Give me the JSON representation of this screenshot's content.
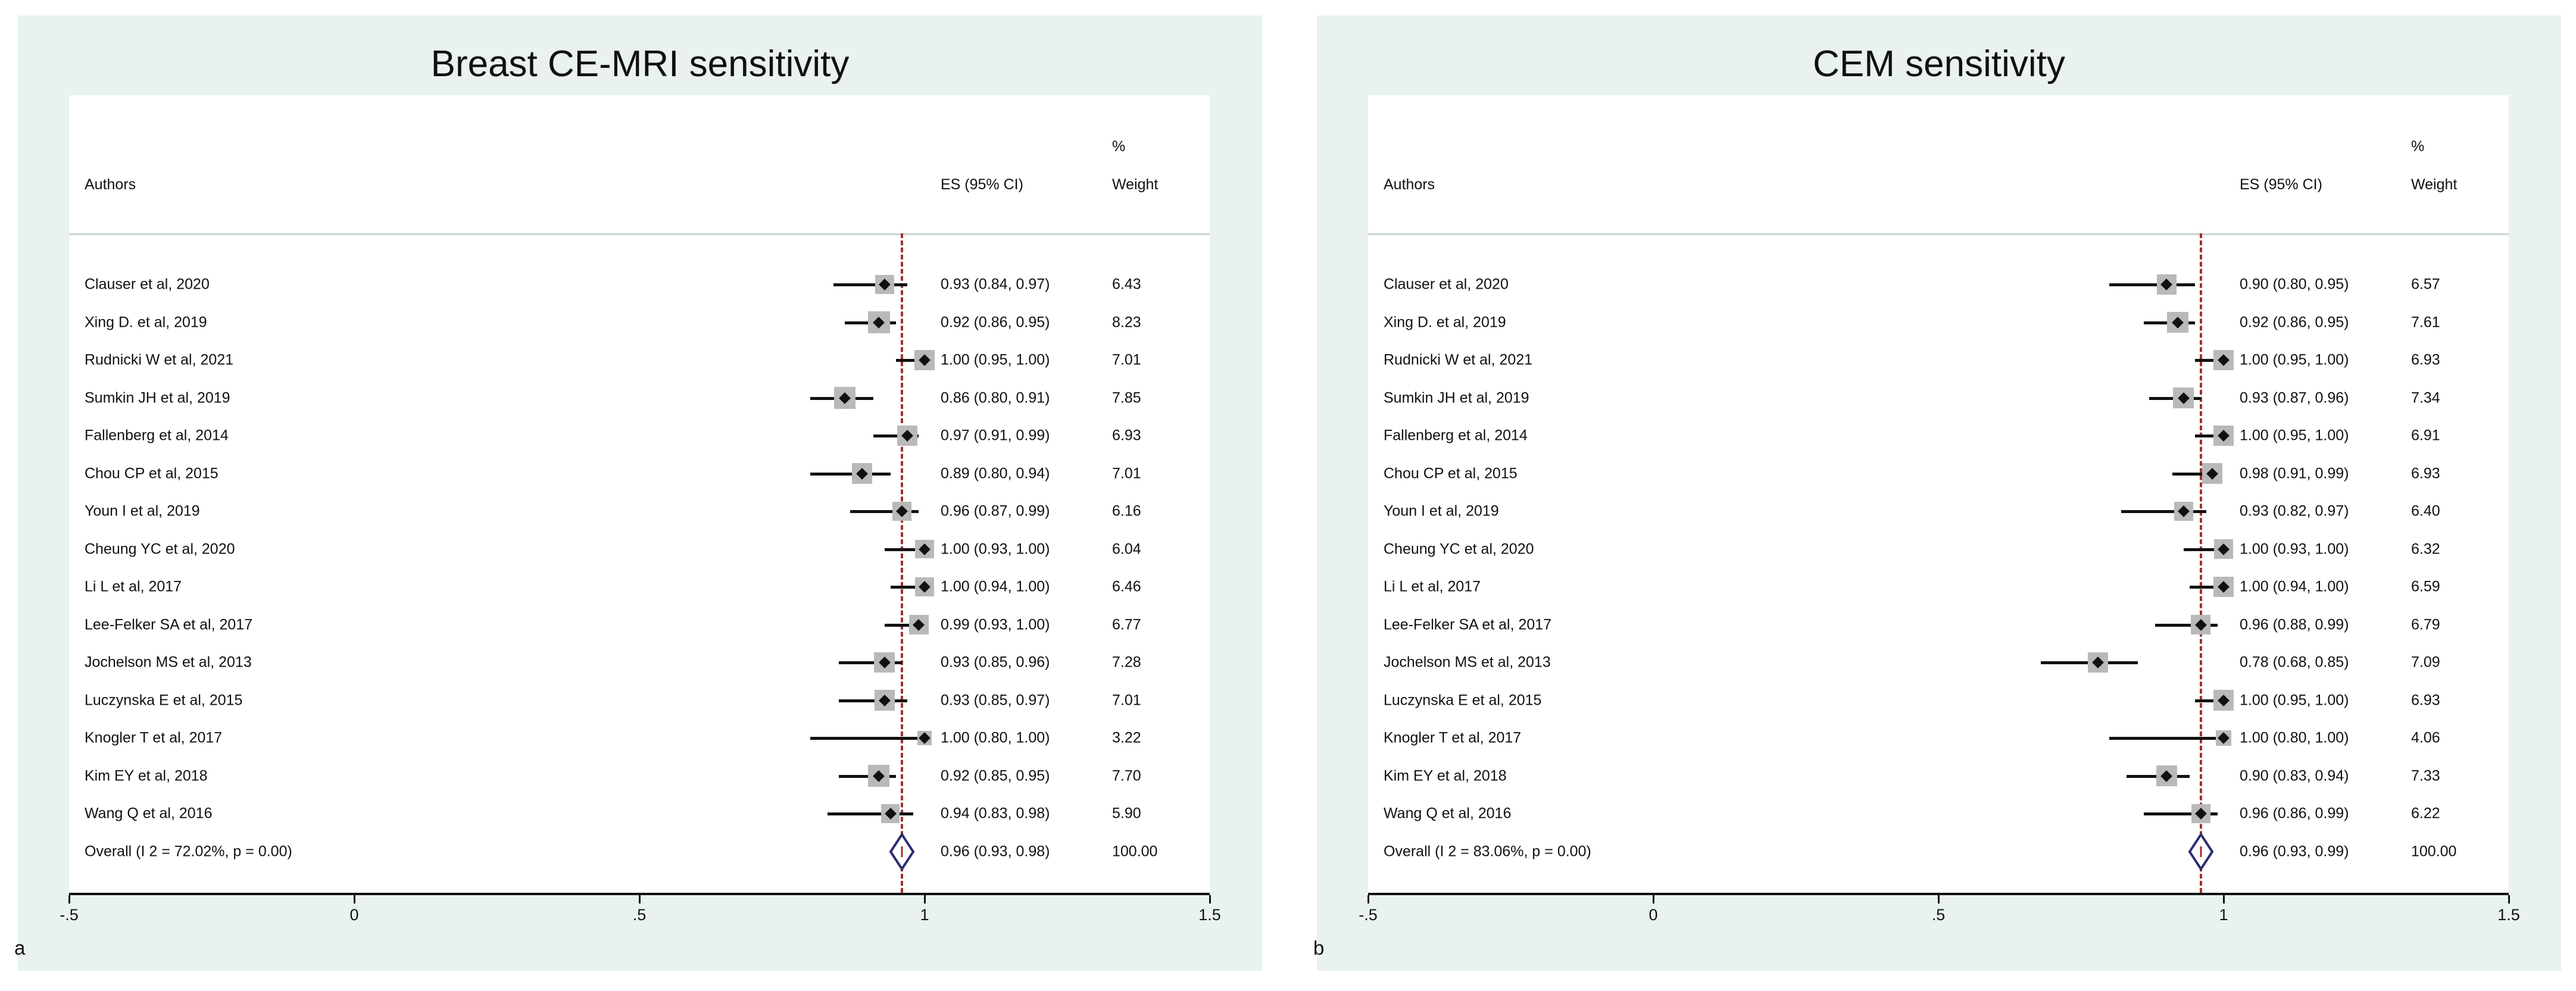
{
  "chart_data": [
    {
      "panel_label": "a",
      "type": "forest",
      "title": "Breast CE-MRI sensitivity",
      "col_headers": {
        "authors": "Authors",
        "es": "ES (95% CI)",
        "pct": "%",
        "weight": "Weight"
      },
      "xlim": [
        -0.5,
        1.5
      ],
      "ticks": [
        "-.5",
        "0",
        ".5",
        "1",
        "1.5"
      ],
      "tick_values": [
        -0.5,
        0,
        0.5,
        1,
        1.5
      ],
      "overall_es": 0.96,
      "studies": [
        {
          "name": "Clauser et al, 2020",
          "es": 0.93,
          "lo": 0.84,
          "hi": 0.97,
          "label": "0.93 (0.84, 0.97)",
          "weight": "6.43"
        },
        {
          "name": "Xing D. et al, 2019",
          "es": 0.92,
          "lo": 0.86,
          "hi": 0.95,
          "label": "0.92 (0.86, 0.95)",
          "weight": "8.23"
        },
        {
          "name": "Rudnicki W et al, 2021",
          "es": 1.0,
          "lo": 0.95,
          "hi": 1.0,
          "label": "1.00 (0.95, 1.00)",
          "weight": "7.01"
        },
        {
          "name": "Sumkin JH et al, 2019",
          "es": 0.86,
          "lo": 0.8,
          "hi": 0.91,
          "label": "0.86 (0.80, 0.91)",
          "weight": "7.85"
        },
        {
          "name": "Fallenberg et al, 2014",
          "es": 0.97,
          "lo": 0.91,
          "hi": 0.99,
          "label": "0.97 (0.91, 0.99)",
          "weight": "6.93"
        },
        {
          "name": "Chou CP et al, 2015",
          "es": 0.89,
          "lo": 0.8,
          "hi": 0.94,
          "label": "0.89 (0.80, 0.94)",
          "weight": "7.01"
        },
        {
          "name": "Youn I et al, 2019",
          "es": 0.96,
          "lo": 0.87,
          "hi": 0.99,
          "label": "0.96 (0.87, 0.99)",
          "weight": "6.16"
        },
        {
          "name": "Cheung YC et al, 2020",
          "es": 1.0,
          "lo": 0.93,
          "hi": 1.0,
          "label": "1.00 (0.93, 1.00)",
          "weight": "6.04"
        },
        {
          "name": "Li L et al, 2017",
          "es": 1.0,
          "lo": 0.94,
          "hi": 1.0,
          "label": "1.00 (0.94, 1.00)",
          "weight": "6.46"
        },
        {
          "name": "Lee-Felker SA et al, 2017",
          "es": 0.99,
          "lo": 0.93,
          "hi": 1.0,
          "label": "0.99 (0.93, 1.00)",
          "weight": "6.77"
        },
        {
          "name": "Jochelson MS et al, 2013",
          "es": 0.93,
          "lo": 0.85,
          "hi": 0.96,
          "label": "0.93 (0.85, 0.96)",
          "weight": "7.28"
        },
        {
          "name": "Luczynska E et al, 2015",
          "es": 0.93,
          "lo": 0.85,
          "hi": 0.97,
          "label": "0.93 (0.85, 0.97)",
          "weight": "7.01"
        },
        {
          "name": "Knogler T et al, 2017",
          "es": 1.0,
          "lo": 0.8,
          "hi": 1.0,
          "label": "1.00 (0.80, 1.00)",
          "weight": "3.22"
        },
        {
          "name": "Kim EY et al, 2018",
          "es": 0.92,
          "lo": 0.85,
          "hi": 0.95,
          "label": "0.92 (0.85, 0.95)",
          "weight": "7.70"
        },
        {
          "name": "Wang Q et al, 2016",
          "es": 0.94,
          "lo": 0.83,
          "hi": 0.98,
          "label": "0.94 (0.83, 0.98)",
          "weight": "5.90"
        }
      ],
      "overall": {
        "name": "Overall  (I 2 = 72.02%, p = 0.00)",
        "es": 0.96,
        "lo": 0.93,
        "hi": 0.98,
        "label": "0.96 (0.93, 0.98)",
        "weight": "100.00"
      }
    },
    {
      "panel_label": "b",
      "type": "forest",
      "title": "CEM sensitivity",
      "col_headers": {
        "authors": "Authors",
        "es": "ES (95% CI)",
        "pct": "%",
        "weight": "Weight"
      },
      "xlim": [
        -0.5,
        1.5
      ],
      "ticks": [
        "-.5",
        "0",
        ".5",
        "1",
        "1.5"
      ],
      "tick_values": [
        -0.5,
        0,
        0.5,
        1,
        1.5
      ],
      "overall_es": 0.96,
      "studies": [
        {
          "name": "Clauser et al, 2020",
          "es": 0.9,
          "lo": 0.8,
          "hi": 0.95,
          "label": "0.90 (0.80, 0.95)",
          "weight": "6.57"
        },
        {
          "name": "Xing D. et al, 2019",
          "es": 0.92,
          "lo": 0.86,
          "hi": 0.95,
          "label": "0.92 (0.86, 0.95)",
          "weight": "7.61"
        },
        {
          "name": "Rudnicki W et al, 2021",
          "es": 1.0,
          "lo": 0.95,
          "hi": 1.0,
          "label": "1.00 (0.95, 1.00)",
          "weight": "6.93"
        },
        {
          "name": "Sumkin JH et al, 2019",
          "es": 0.93,
          "lo": 0.87,
          "hi": 0.96,
          "label": "0.93 (0.87, 0.96)",
          "weight": "7.34"
        },
        {
          "name": "Fallenberg et al, 2014",
          "es": 1.0,
          "lo": 0.95,
          "hi": 1.0,
          "label": "1.00 (0.95, 1.00)",
          "weight": "6.91"
        },
        {
          "name": "Chou CP et al, 2015",
          "es": 0.98,
          "lo": 0.91,
          "hi": 0.99,
          "label": "0.98 (0.91, 0.99)",
          "weight": "6.93"
        },
        {
          "name": "Youn I et al, 2019",
          "es": 0.93,
          "lo": 0.82,
          "hi": 0.97,
          "label": "0.93 (0.82, 0.97)",
          "weight": "6.40"
        },
        {
          "name": "Cheung YC et al, 2020",
          "es": 1.0,
          "lo": 0.93,
          "hi": 1.0,
          "label": "1.00 (0.93, 1.00)",
          "weight": "6.32"
        },
        {
          "name": "Li L et al, 2017",
          "es": 1.0,
          "lo": 0.94,
          "hi": 1.0,
          "label": "1.00 (0.94, 1.00)",
          "weight": "6.59"
        },
        {
          "name": "Lee-Felker SA et al, 2017",
          "es": 0.96,
          "lo": 0.88,
          "hi": 0.99,
          "label": "0.96 (0.88, 0.99)",
          "weight": "6.79"
        },
        {
          "name": "Jochelson MS et al, 2013",
          "es": 0.78,
          "lo": 0.68,
          "hi": 0.85,
          "label": "0.78 (0.68, 0.85)",
          "weight": "7.09"
        },
        {
          "name": "Luczynska E et al, 2015",
          "es": 1.0,
          "lo": 0.95,
          "hi": 1.0,
          "label": "1.00 (0.95, 1.00)",
          "weight": "6.93"
        },
        {
          "name": "Knogler T et al, 2017",
          "es": 1.0,
          "lo": 0.8,
          "hi": 1.0,
          "label": "1.00 (0.80, 1.00)",
          "weight": "4.06"
        },
        {
          "name": "Kim EY et al, 2018",
          "es": 0.9,
          "lo": 0.83,
          "hi": 0.94,
          "label": "0.90 (0.83, 0.94)",
          "weight": "7.33"
        },
        {
          "name": "Wang Q et al, 2016",
          "es": 0.96,
          "lo": 0.86,
          "hi": 0.99,
          "label": "0.96 (0.86, 0.99)",
          "weight": "6.22"
        }
      ],
      "overall": {
        "name": "Overall  (I 2 = 83.06%, p = 0.00)",
        "es": 0.96,
        "lo": 0.93,
        "hi": 0.99,
        "label": "0.96 (0.93, 0.99)",
        "weight": "100.00"
      }
    }
  ]
}
